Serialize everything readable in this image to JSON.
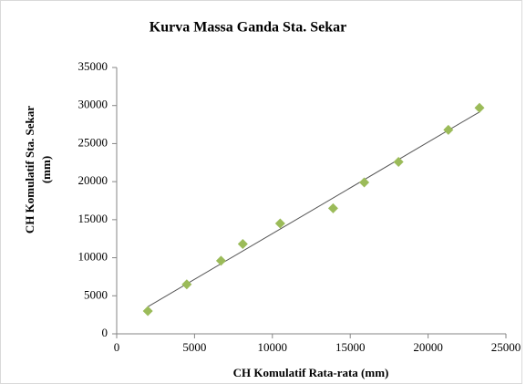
{
  "chart_data": {
    "type": "scatter",
    "title": "Kurva Massa Ganda Sta. Sekar",
    "x_label": "CH Komulatif Rata-rata (mm)",
    "y_label": [
      "CH Komulatif Sta.  Sekar",
      "(mm)"
    ],
    "x": [
      2000,
      4500,
      6700,
      8100,
      10500,
      13900,
      15900,
      18100,
      21300,
      23300
    ],
    "values": [
      3000,
      6500,
      9600,
      11800,
      14500,
      16500,
      19900,
      22600,
      26800,
      29700
    ],
    "color": "#9bbb59",
    "trendline": "linear",
    "trendline_color": "#555555",
    "xlim": [
      0,
      25000
    ],
    "xticks": [
      0,
      5000,
      10000,
      15000,
      20000,
      25000
    ],
    "ylim": [
      0,
      35000
    ],
    "yticks": [
      0,
      5000,
      10000,
      15000,
      20000,
      25000,
      30000,
      35000
    ],
    "grid": false
  }
}
